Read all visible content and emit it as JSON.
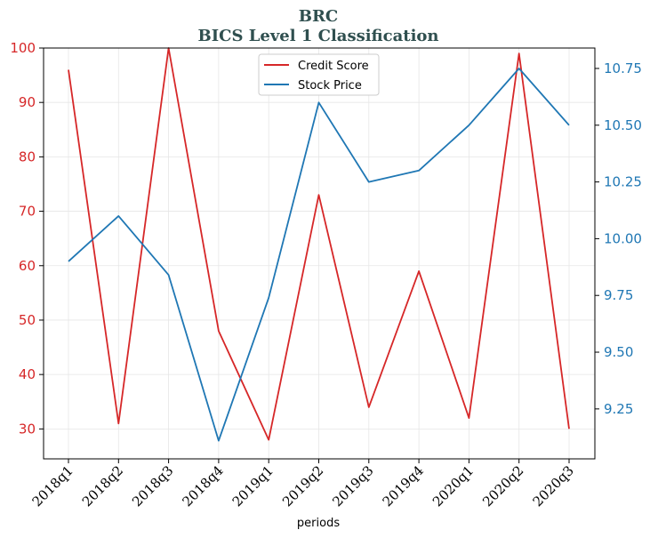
{
  "chart_data": {
    "type": "line",
    "title": "BRC",
    "subtitle": "BICS Level 1 Classification",
    "xlabel": "periods",
    "categories": [
      "2018q1",
      "2018q2",
      "2018q3",
      "2018q4",
      "2019q1",
      "2019q2",
      "2019q3",
      "2019q4",
      "2020q1",
      "2020q2",
      "2020q3"
    ],
    "series": [
      {
        "name": "Credit Score",
        "axis": "left",
        "color": "#d62728",
        "values": [
          96,
          31,
          100,
          48,
          28,
          73,
          34,
          59,
          32,
          99,
          30
        ]
      },
      {
        "name": "Stock Price",
        "axis": "right",
        "color": "#1f77b4",
        "values": [
          9.9,
          10.1,
          9.84,
          9.11,
          9.74,
          10.6,
          10.25,
          10.3,
          10.5,
          10.75,
          10.5
        ]
      }
    ],
    "y_left": {
      "ticks": [
        30,
        40,
        50,
        60,
        70,
        80,
        90,
        100
      ],
      "range": [
        24.5,
        100
      ],
      "tick_color": "#d62728"
    },
    "y_right": {
      "ticks": [
        "9.25",
        "9.50",
        "9.75",
        "10.00",
        "10.25",
        "10.50",
        "10.75"
      ],
      "range": [
        9.03,
        10.84
      ],
      "tick_color": "#1f77b4"
    },
    "grid": true,
    "legend_position": "top-center"
  }
}
